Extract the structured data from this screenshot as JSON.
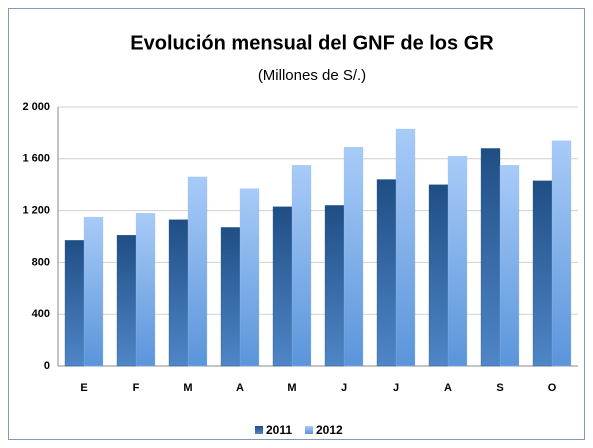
{
  "chart_data": {
    "type": "bar",
    "title": "Evolución mensual del GNF de los GR",
    "subtitle": "(Millones de S/.)",
    "categories": [
      "E",
      "F",
      "M",
      "A",
      "M",
      "J",
      "J",
      "A",
      "S",
      "O"
    ],
    "series": [
      {
        "name": "2011",
        "color": "#1f4e84",
        "values": [
          970,
          1010,
          1130,
          1070,
          1230,
          1240,
          1440,
          1400,
          1680,
          1430
        ]
      },
      {
        "name": "2012",
        "color": "#9cc2f4",
        "values": [
          1150,
          1180,
          1460,
          1370,
          1550,
          1690,
          1830,
          1620,
          1550,
          1740
        ]
      }
    ],
    "ylim": [
      0,
      2000
    ],
    "yticks": [
      0,
      400,
      800,
      {
        "value": 1200,
        "label": "1 200"
      },
      {
        "value": 1600,
        "label": "1 600"
      },
      {
        "value": 2000,
        "label": "2 000"
      }
    ],
    "grid": true,
    "legend": "bottom"
  }
}
